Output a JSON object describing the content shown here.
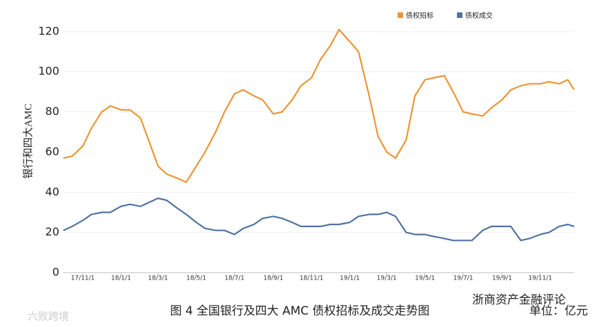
{
  "chart_data": {
    "type": "line",
    "y_label": "银行和四大AMC",
    "caption": "图 4  全国银行及四大 AMC 债权招标及成交走势图",
    "unit": "单位：亿元",
    "watermarks": [
      "浙商资产金融评论",
      "六败跨境"
    ],
    "legend": "top-right",
    "grid": true,
    "x": [
      "2017-10-01",
      "2017-10-15",
      "2017-11-01",
      "2017-11-15",
      "2017-12-01",
      "2017-12-15",
      "2018-01-01",
      "2018-01-15",
      "2018-02-01",
      "2018-02-15",
      "2018-03-01",
      "2018-03-15",
      "2018-04-01",
      "2018-04-15",
      "2018-05-01",
      "2018-05-15",
      "2018-06-01",
      "2018-06-15",
      "2018-07-01",
      "2018-07-15",
      "2018-08-01",
      "2018-08-15",
      "2018-09-01",
      "2018-09-15",
      "2018-10-01",
      "2018-10-15",
      "2018-11-01",
      "2018-11-15",
      "2018-12-01",
      "2018-12-15",
      "2019-01-01",
      "2019-01-15",
      "2019-02-01",
      "2019-02-15",
      "2019-03-01",
      "2019-03-15",
      "2019-04-01",
      "2019-04-15",
      "2019-05-01",
      "2019-05-15",
      "2019-06-01",
      "2019-06-15",
      "2019-07-01",
      "2019-07-15",
      "2019-08-01",
      "2019-08-15",
      "2019-09-01",
      "2019-09-15",
      "2019-10-01",
      "2019-10-15",
      "2019-11-01",
      "2019-11-15",
      "2019-12-01",
      "2019-12-15",
      "2019-12-25"
    ],
    "series": [
      {
        "name": "债权招标",
        "color": "#ee9433",
        "values": [
          57,
          58,
          63,
          72,
          80,
          83,
          81,
          81,
          77,
          65,
          53,
          49,
          47,
          45,
          53,
          60,
          70,
          80,
          89,
          91,
          88,
          86,
          79,
          80,
          86,
          93,
          97,
          106,
          113,
          121,
          115,
          110,
          88,
          68,
          60,
          57,
          66,
          88,
          96,
          97,
          98,
          90,
          80,
          79,
          78,
          82,
          86,
          91,
          93,
          94,
          94,
          95,
          94,
          96,
          91
        ]
      },
      {
        "name": "债权成交",
        "color": "#4f72a0",
        "values": [
          21,
          23,
          26,
          29,
          30,
          30,
          33,
          34,
          33,
          35,
          37,
          36,
          32,
          29,
          25,
          22,
          21,
          21,
          19,
          22,
          24,
          27,
          28,
          27,
          25,
          23,
          23,
          23,
          24,
          24,
          25,
          28,
          29,
          29,
          30,
          28,
          20,
          19,
          19,
          18,
          17,
          16,
          16,
          16,
          21,
          23,
          23,
          23,
          16,
          17,
          19,
          20,
          23,
          24,
          23
        ]
      }
    ],
    "xlim": [
      "2017-10-01",
      "2019-12-25"
    ],
    "xticks": [
      {
        "value": "2017-11-01",
        "label": "17/11/1"
      },
      {
        "value": "2018-01-01",
        "label": "18/1/1"
      },
      {
        "value": "2018-03-01",
        "label": "18/3/1"
      },
      {
        "value": "2018-05-01",
        "label": "18/5/1"
      },
      {
        "value": "2018-07-01",
        "label": "18/7/1"
      },
      {
        "value": "2018-09-01",
        "label": "18/9/1"
      },
      {
        "value": "2018-11-01",
        "label": "18/11/1"
      },
      {
        "value": "2019-01-01",
        "label": "19/1/1"
      },
      {
        "value": "2019-03-01",
        "label": "19/3/1"
      },
      {
        "value": "2019-05-01",
        "label": "19/5/1"
      },
      {
        "value": "2019-07-01",
        "label": "19/7/1"
      },
      {
        "value": "2019-09-01",
        "label": "19/9/1"
      },
      {
        "value": "2019-11-01",
        "label": "19/11/1"
      }
    ],
    "ylim": [
      0,
      122
    ],
    "yticks": [
      0,
      20,
      40,
      60,
      80,
      100,
      120
    ]
  }
}
